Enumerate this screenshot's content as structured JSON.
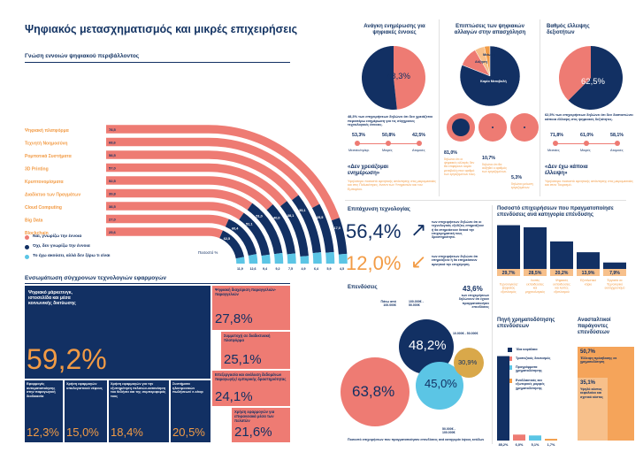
{
  "title": "Ψηφιακός μετασχηματισμός και μικρές επιχειρήσεις",
  "colors": {
    "navy": "#123063",
    "coral": "#ee7b73",
    "light_blue": "#5bc5e5",
    "orange": "#f29b45"
  },
  "awareness": {
    "heading": "Γνώση εννοιών ψηφιακού περιβάλλοντος",
    "legend": [
      {
        "label": "Ναι, γνωρίζω την έννοια",
        "color": "#ee7b73"
      },
      {
        "label": "Όχι, δεν γνωρίζω την έννοια",
        "color": "#123063"
      },
      {
        "label": "Το έχω ακούσει, αλλά δεν ξέρω τι είναι",
        "color": "#5bc5e5"
      }
    ],
    "footnote": "Ποσοστό %",
    "chart_data": {
      "type": "bar",
      "categories": [
        "Ψηφιακή πλατφόρμα",
        "Τεχνητή Νοημοσύνη",
        "Ρομποτικά Συστήματα",
        "3D Printing",
        "Κρυπτονομίσματα",
        "Διαδίκτυο των Πραγμάτων",
        "Cloud Computing",
        "Big Data",
        "Blockchain"
      ],
      "series": [
        {
          "name": "Ναι, γνωρίζω την έννοια",
          "values": [
            78.5,
            68.6,
            58.5,
            57.0,
            52.5,
            39.8,
            38.5,
            27.0,
            25.6
          ]
        },
        {
          "name": "Όχι, δεν γνωρίζω την έννοια",
          "values": [
            17.0,
            25.5,
            35.1,
            38.1,
            40.0,
            51.0,
            52.1,
            60.4,
            62.5
          ]
        },
        {
          "name": "Το έχω ακούσει, αλλά δεν ξέρω τι είναι",
          "values": [
            4.5,
            5.9,
            6.4,
            4.9,
            7.5,
            9.2,
            9.4,
            12.6,
            11.9
          ]
        }
      ],
      "value_labels": [
        [
          "78,5",
          "68,6",
          "58,5",
          "57,0",
          "52,5",
          "39,8",
          "38,5",
          "27,0",
          "25,6"
        ],
        [
          "17,0",
          "25,5",
          "35,1",
          "38,1",
          "40,0",
          "51,0",
          "52,1",
          "60,4",
          "62,5"
        ],
        [
          "4,5",
          "5,9",
          "6,4",
          "4,9",
          "7,5",
          "9,2",
          "9,4",
          "12,6",
          "11,9"
        ]
      ]
    }
  },
  "integration": {
    "heading": "Ενσωμάτωση σύγχρονων τεχνολογιών εφαρμογών",
    "main_label": "Ψηφιακό μάρκετινγκ, ιστοσελίδα και μέσα κοινωνικής δικτύωσης",
    "main_value": "59,2%",
    "right_items": [
      {
        "label": "Ψηφιακή διαχείριση παραγγελιών-παραγγελιών",
        "value": "27,8%"
      },
      {
        "label": "Συμμετοχή σε διαδικτυακή πλατφόρμα",
        "value": "25,1%"
      },
      {
        "label": "Επεξεργασία και ανάλυση δεδομένων παραγωγής/ εμπορικής δραστηριότητας",
        "value": "24,1%"
      },
      {
        "label": "Χρήση εφαρμογών για επιφανειακά μέσα των πελατών",
        "value": "21,6%"
      }
    ],
    "bottom_items": [
      {
        "label": "Εφαρμογές αυτοματοποίησης στην παραγωγική διαδικασία",
        "value": "12,3%"
      },
      {
        "label": "Χρήση εφαρμογών υπολογιστικού νέφους",
        "value": "15,0%"
      },
      {
        "label": "Χρήση εφαρμογών για την εξυπηρέτηση πελατών-κατανόηση του θελήσει και της συμπεριφοράς τους",
        "value": "18,4%"
      },
      {
        "label": "Συστήματα ηλεκτρονικών πωλήσεων/ e-shop",
        "value": "20,5%"
      }
    ]
  },
  "need": {
    "heading": "Ανάγκη ενημέρωσης για ψηφιακές έννοιες",
    "pie_value": 48.3,
    "pie_label": "48,3%",
    "note": "48,3% των επιχειρήσεων δηλώνει ότι δεν χρειάζεται περαιτέρω ενημέρωση για τις σύγχρονες τεχνολογικές έννοιες.",
    "sizes": [
      {
        "value": "53,3%",
        "label": "Μεσαίο/σμίκρ."
      },
      {
        "value": "50,8%",
        "label": "Μικρές"
      },
      {
        "value": "42,5%",
        "label": "Ατομικές"
      }
    ],
    "quote": "«Δεν χρειάζομαι ενημέρωση»",
    "quote_note": "Υψηλότερο ποσοστό αρνητικής απάντησης στις μικρομεσαίες και στις Πολυκέντρες, έναντι των Υπηρεσιών και του Εμπορίου."
  },
  "impact": {
    "heading": "Επιπτώσεις των ψηφιακών αλλαγών στην απασχόληση",
    "slices": [
      {
        "label": "Καμία Μεταβολή",
        "value": 81.0
      },
      {
        "label": "Αύξηση",
        "value": 10.7
      },
      {
        "label": "Μείωση",
        "value": 5.3
      },
      {
        "label": "Άλλο",
        "value": 3.0
      }
    ],
    "circle_values": [
      {
        "value": "81,0%",
        "note": "δηλώνει ότι οι ψηφιακές αλλαγές δεν θα επιφέρουν καμία μεταβολή στον αριθμό των εργαζομένων τους."
      },
      {
        "value": "10,7%",
        "note": "δηλώνει ότι θα αυξηθεί ο αριθμός των εργαζομένων."
      },
      {
        "value": "5,3%",
        "note": "δηλώνει μείωση εργαζομένων."
      }
    ]
  },
  "deficit": {
    "heading": "Βαθμός έλλειψης δεξιοτήτων",
    "pie_value": 62.5,
    "pie_label": "62,5%",
    "note": "62,5% των επιχειρήσεων δηλώνει ότι δεν διαπιστώνει κάποια έλλειψη στις ψηφιακές δεξιότητες.",
    "sizes": [
      {
        "value": "71,8%",
        "label": "Μεσαίες"
      },
      {
        "value": "61,0%",
        "label": "Μικρές"
      },
      {
        "value": "58,1%",
        "label": "Ατομικές"
      }
    ],
    "quote": "«Δεν έχω κάποια έλλειψη»",
    "quote_note": "Υψηλότερο ποσοστό αρνητικής απάντησης στις μικρομεσαίες και στον Τουρισμό."
  },
  "adoption": {
    "heading": "Επιτάχυνση τεχνολογίας",
    "items": [
      {
        "value": "56,4%",
        "arrow": "↗",
        "note": "των επιχειρήσεων δηλώνει ότι οι τεχνολογικές εξελίξεις επηρεάζουν ή θα επηρεάσουν θετικά την επιχειρηματική τους δραστηριότητα."
      },
      {
        "value": "12,0%",
        "arrow": "↙",
        "note": "των επιχειρήσεων δηλώνει ότι επηρεάζουν ή θα επηρεάσουν αρνητικά την επιχείρηση."
      }
    ]
  },
  "investments": {
    "heading": "Επενδύσεις",
    "value": "43,6%",
    "note": "των επιχειρήσεων δηλώνουν ότι έχουν πραγματοποιήσει επενδύσεις",
    "bubble_labels": [
      "Πάνω από 100.000€",
      "100.000€ - 50.000€",
      "10.000€ - 50.000€",
      "50.000€ - 100.000€"
    ],
    "bubbles": [
      {
        "value": "63,8%"
      },
      {
        "value": "48,2%"
      },
      {
        "value": "45,0%"
      },
      {
        "value": "30,9%"
      }
    ],
    "footnote": "Ποσοστό επιχειρήσεων που πραγματοποίησαν επενδύσεις ανά κατηγορία ύψους εσόδων"
  },
  "investment_types": {
    "heading": "Ποσοστό επιχειρήσεων που πραγματοποίησε επενδύσεις ανά κατηγορία επένδυσης",
    "chart_data": {
      "type": "bar",
      "categories": [
        "Τεχνολογικός/ ψηφιακός εξοπλισμός",
        "Λοιπές εκπαιδεύσεις και μηχανολογικός εξοπλισμός",
        "Ψηφιακές εκπαιδεύσεις και λοιπές εξοπλισμού",
        "Εξοπλιστικό κτίριο",
        "Έργασία σε Τεχνολογικό εκσυγχρονισμό"
      ],
      "values": [
        29.7,
        28.5,
        20.2,
        13.9,
        7.9
      ],
      "value_labels": [
        "29,7%",
        "28,5%",
        "20,2%",
        "13,9%",
        "7,9%"
      ]
    }
  },
  "funding": {
    "heading": "Πηγή χρηματοδότησης επενδύσεων",
    "legend": [
      {
        "label": "Ίδια κεφάλαια",
        "color": "#123063"
      },
      {
        "label": "Τραπεζικός δανεισμός",
        "color": "#ee7b73"
      },
      {
        "label": "Προγράμματα χρηματοδότησης",
        "color": "#5bc5e5"
      },
      {
        "label": "Εναλλακτικές και εξωτερικές μορφές χρηματοδότησης",
        "color": "#f29b45"
      }
    ],
    "chart_data": {
      "type": "bar",
      "categories": [
        "Ίδια κεφάλαια",
        "Τραπεζικός δανεισμός",
        "Προγράμματα χρηματοδότησης",
        "Εναλλακτικές μορφές"
      ],
      "values": [
        85.2,
        6.0,
        5.1,
        1.7
      ],
      "value_labels": [
        "85,2%",
        "6,0%",
        "5,1%",
        "1,7%"
      ]
    }
  },
  "barriers": {
    "heading": "Ανασταλτικοί παράγοντες επενδύσεων",
    "items": [
      {
        "value": "50,7%",
        "label": "Έλλειψη πρόσβασης σε χρηματοδότηση"
      },
      {
        "value": "35,1%",
        "label": "Υψηλό κόστος κεφαλαίου και σχετικό κόστος"
      }
    ]
  }
}
